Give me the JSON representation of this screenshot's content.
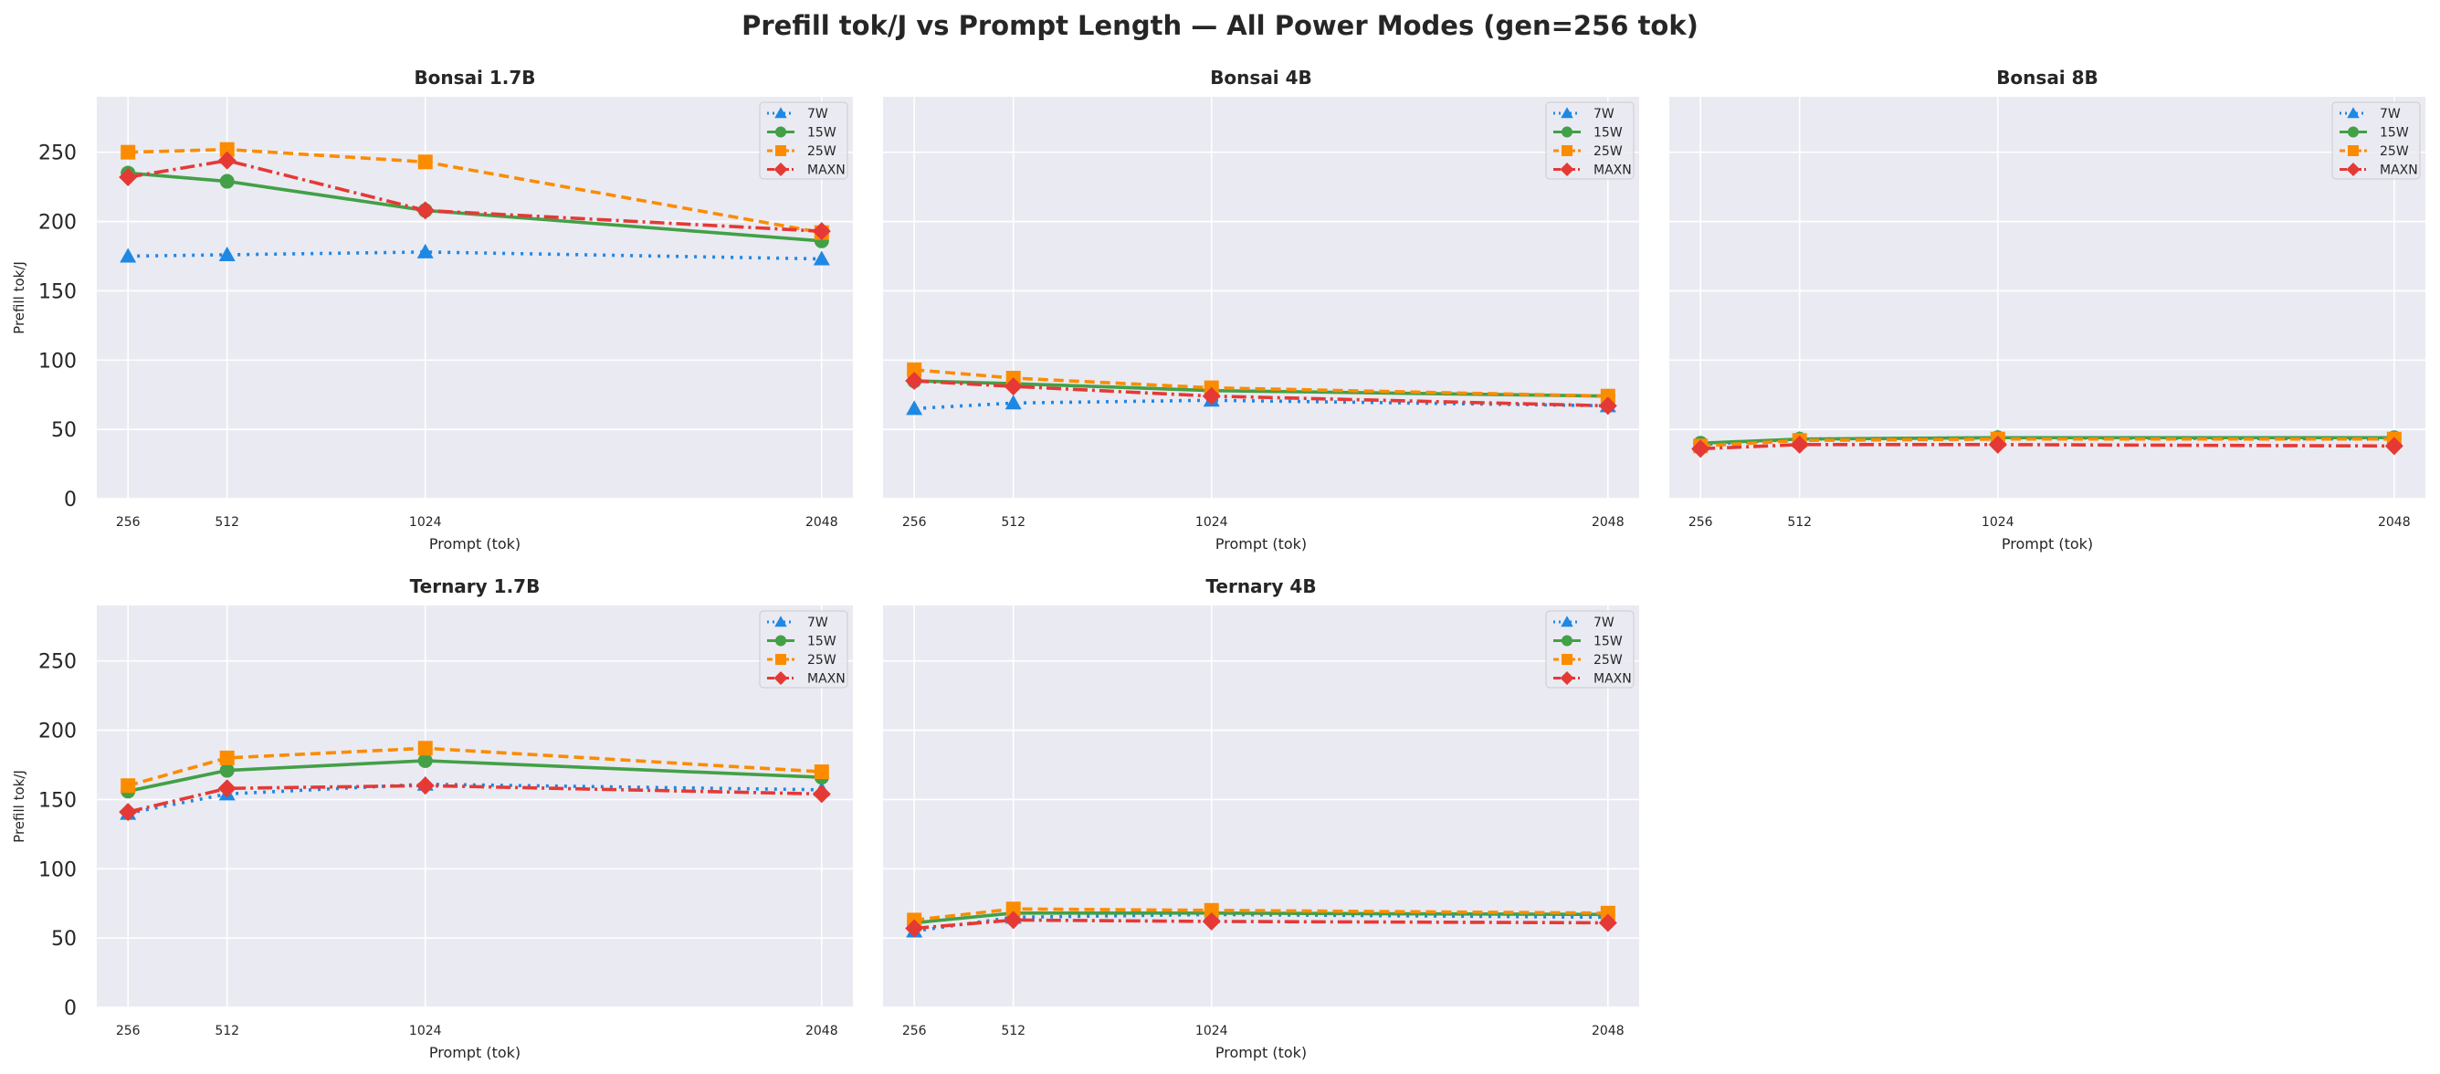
{
  "figure": {
    "title": "Prefill tok/J vs Prompt Length — All Power Modes (gen=256 tok)"
  },
  "colors": {
    "7W": "#1e88e5",
    "15W": "#43a047",
    "25W": "#fb8c00",
    "MAXN": "#e53935",
    "panel_bg": "#eaeaf2",
    "grid": "#ffffff"
  },
  "chart_data": [
    {
      "type": "line",
      "title": "Bonsai 1.7B",
      "xlabel": "Prompt (tok)",
      "ylabel": "Prefill tok/J",
      "x": [
        256,
        512,
        1024,
        2048
      ],
      "ylim": [
        0,
        290
      ],
      "yticks": [
        0,
        50,
        100,
        150,
        200,
        250
      ],
      "grid": true,
      "legend": "top-right",
      "series": [
        {
          "name": "7W",
          "values": [
            175,
            176,
            178,
            173
          ]
        },
        {
          "name": "15W",
          "values": [
            235,
            229,
            208,
            186
          ]
        },
        {
          "name": "25W",
          "values": [
            250,
            252,
            243,
            192
          ]
        },
        {
          "name": "MAXN",
          "values": [
            232,
            244,
            208,
            193
          ]
        }
      ]
    },
    {
      "type": "line",
      "title": "Bonsai 4B",
      "xlabel": "Prompt (tok)",
      "ylabel": "",
      "x": [
        256,
        512,
        1024,
        2048
      ],
      "ylim": [
        0,
        290
      ],
      "yticks": [
        0,
        50,
        100,
        150,
        200,
        250
      ],
      "grid": true,
      "legend": "top-right",
      "series": [
        {
          "name": "7W",
          "values": [
            65,
            69,
            71,
            67
          ]
        },
        {
          "name": "15W",
          "values": [
            85,
            83,
            78,
            74
          ]
        },
        {
          "name": "25W",
          "values": [
            93,
            87,
            80,
            74
          ]
        },
        {
          "name": "MAXN",
          "values": [
            85,
            81,
            74,
            67
          ]
        }
      ]
    },
    {
      "type": "line",
      "title": "Bonsai 8B",
      "xlabel": "Prompt (tok)",
      "ylabel": "",
      "x": [
        256,
        512,
        1024,
        2048
      ],
      "ylim": [
        0,
        290
      ],
      "yticks": [
        0,
        50,
        100,
        150,
        200,
        250
      ],
      "grid": true,
      "legend": "top-right",
      "series": [
        {
          "name": "7W",
          "values": [
            39,
            43,
            44,
            43
          ]
        },
        {
          "name": "15W",
          "values": [
            40,
            43,
            44,
            44
          ]
        },
        {
          "name": "25W",
          "values": [
            38,
            42,
            43,
            43
          ]
        },
        {
          "name": "MAXN",
          "values": [
            36,
            39,
            39,
            38
          ]
        }
      ]
    },
    {
      "type": "line",
      "title": "Ternary 1.7B",
      "xlabel": "Prompt (tok)",
      "ylabel": "Prefill tok/J",
      "x": [
        256,
        512,
        1024,
        2048
      ],
      "ylim": [
        0,
        290
      ],
      "yticks": [
        0,
        50,
        100,
        150,
        200,
        250
      ],
      "grid": true,
      "legend": "top-right",
      "series": [
        {
          "name": "7W",
          "values": [
            140,
            154,
            161,
            157
          ]
        },
        {
          "name": "15W",
          "values": [
            156,
            171,
            178,
            166
          ]
        },
        {
          "name": "25W",
          "values": [
            160,
            180,
            187,
            170
          ]
        },
        {
          "name": "MAXN",
          "values": [
            141,
            158,
            160,
            154
          ]
        }
      ]
    },
    {
      "type": "line",
      "title": "Ternary 4B",
      "xlabel": "Prompt (tok)",
      "ylabel": "",
      "x": [
        256,
        512,
        1024,
        2048
      ],
      "ylim": [
        0,
        290
      ],
      "yticks": [
        0,
        50,
        100,
        150,
        200,
        250
      ],
      "grid": true,
      "legend": "top-right",
      "series": [
        {
          "name": "7W",
          "values": [
            55,
            65,
            67,
            65
          ]
        },
        {
          "name": "15W",
          "values": [
            61,
            68,
            68,
            67
          ]
        },
        {
          "name": "25W",
          "values": [
            63,
            71,
            70,
            68
          ]
        },
        {
          "name": "MAXN",
          "values": [
            57,
            63,
            62,
            61
          ]
        }
      ]
    }
  ]
}
